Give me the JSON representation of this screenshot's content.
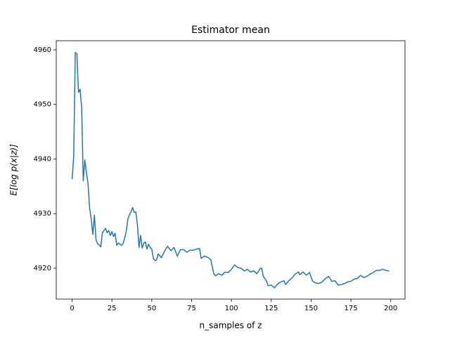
{
  "chart_data": {
    "type": "line",
    "title": "Estimator mean",
    "x_label": "n_samples of z",
    "y_label": "E[log p(x|z)]",
    "x": [
      0,
      1,
      2,
      3,
      4,
      5,
      6,
      7,
      8,
      9,
      10,
      11,
      12,
      13,
      14,
      15,
      16,
      17,
      18,
      19,
      20,
      21,
      22,
      23,
      24,
      25,
      26,
      27,
      28,
      29,
      30,
      31,
      32,
      33,
      34,
      35,
      36,
      37,
      38,
      39,
      40,
      41,
      42,
      43,
      44,
      45,
      46,
      47,
      48,
      49,
      50,
      51,
      52,
      53,
      54,
      55,
      56,
      57,
      58,
      59,
      60,
      62,
      64,
      66,
      68,
      70,
      72,
      74,
      76,
      78,
      80,
      81,
      83,
      85,
      87,
      89,
      90,
      92,
      94,
      96,
      98,
      100,
      102,
      104,
      106,
      108,
      110,
      112,
      114,
      116,
      118,
      119,
      120,
      122,
      123,
      125,
      127,
      129,
      131,
      133,
      134,
      136,
      138,
      140,
      142,
      143,
      145,
      147,
      149,
      151,
      153,
      155,
      157,
      159,
      161,
      163,
      165,
      167,
      169,
      171,
      173,
      175,
      177,
      179,
      181,
      183,
      185,
      187,
      189,
      191,
      193,
      195,
      197,
      199
    ],
    "series": [
      {
        "name": "estimator mean",
        "color": "#1f77b4",
        "values": [
          4936.3,
          4940.5,
          4959.5,
          4959.3,
          4952.2,
          4952.8,
          4949.5,
          4936.0,
          4939.8,
          4937.5,
          4935.5,
          4931,
          4929,
          4926.2,
          4929.7,
          4925.2,
          4924.5,
          4924.3,
          4923.9,
          4926.5,
          4926.9,
          4927.3,
          4926.5,
          4926.9,
          4926.0,
          4926.7,
          4925.8,
          4926.4,
          4924.2,
          4924.6,
          4924.4,
          4924.2,
          4924.5,
          4925.5,
          4926.8,
          4929,
          4929.8,
          4930.3,
          4931.1,
          4930.2,
          4930.3,
          4928,
          4923.8,
          4926,
          4923.7,
          4924.6,
          4924.8,
          4923.5,
          4924.4,
          4923.8,
          4923.5,
          4921.8,
          4921.4,
          4921.5,
          4922.6,
          4922.3,
          4921.9,
          4922.5,
          4923.1,
          4923.6,
          4924.0,
          4923.2,
          4923.8,
          4922.2,
          4923.4,
          4923.4,
          4922.9,
          4923.3,
          4923.3,
          4923.5,
          4923.6,
          4921.8,
          4922.2,
          4922.0,
          4921.6,
          4918.9,
          4918.6,
          4919.0,
          4918.7,
          4919.3,
          4919.2,
          4919.8,
          4920.6,
          4920.1,
          4920.0,
          4919.5,
          4919.8,
          4919.3,
          4919.5,
          4919.0,
          4919.9,
          4920.0,
          4918.5,
          4917.7,
          4916.8,
          4916.9,
          4916.4,
          4917.1,
          4917.5,
          4917.7,
          4917.0,
          4917.7,
          4918.2,
          4918.9,
          4919.3,
          4918.8,
          4919.3,
          4918.7,
          4919.2,
          4917.6,
          4917.3,
          4917.2,
          4917.5,
          4918.1,
          4918.5,
          4917.6,
          4917.7,
          4916.9,
          4917.0,
          4917.2,
          4917.5,
          4917.6,
          4918.0,
          4918.1,
          4918.7,
          4918.3,
          4918.5,
          4918.9,
          4919.2,
          4919.6,
          4919.6,
          4919.8,
          4919.6,
          4919.5
        ]
      }
    ],
    "xlim": [
      -9.95,
      208.95
    ],
    "xticks": [
      0,
      25,
      50,
      75,
      100,
      125,
      150,
      175,
      200
    ],
    "ylim": [
      4914.34,
      4961.67
    ],
    "yticks": [
      4920,
      4930,
      4940,
      4950,
      4960
    ],
    "grid": false
  }
}
